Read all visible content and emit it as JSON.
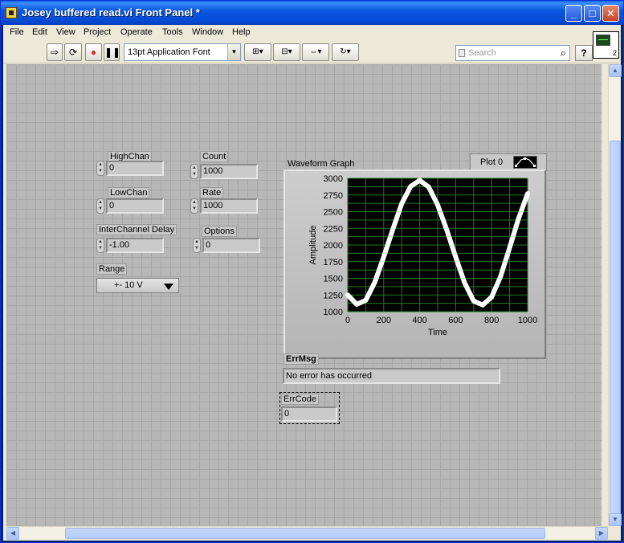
{
  "window": {
    "title": "Josey buffered read.vi Front Panel *"
  },
  "menu": [
    "File",
    "Edit",
    "View",
    "Project",
    "Operate",
    "Tools",
    "Window",
    "Help"
  ],
  "toolbar": {
    "font": "13pt Application Font",
    "search_placeholder": "Search",
    "help_label": "?",
    "icon_number": "2"
  },
  "controls": {
    "highchan": {
      "label": "HighChan",
      "value": "0"
    },
    "lowchan": {
      "label": "LowChan",
      "value": "0"
    },
    "interchannel_delay": {
      "label": "InterChannel Delay",
      "value": "-1.00"
    },
    "range": {
      "label": "Range",
      "value": "+- 10 V"
    },
    "count": {
      "label": "Count",
      "value": "1000"
    },
    "rate": {
      "label": "Rate",
      "value": "1000"
    },
    "options": {
      "label": "Options",
      "value": "0"
    }
  },
  "graph": {
    "title": "Waveform Graph",
    "legend": "Plot 0",
    "colors": {
      "plot_bg": "#000000",
      "grid": "#1f7a1f",
      "trace": "#ffffff"
    }
  },
  "chart_data": {
    "type": "line",
    "title": "Waveform Graph",
    "xlabel": "Time",
    "ylabel": "Amplitude",
    "xlim": [
      0,
      1000
    ],
    "ylim": [
      1000,
      3000
    ],
    "x_ticks": [
      "0",
      "200",
      "400",
      "600",
      "800",
      "1000"
    ],
    "y_ticks": [
      "1000",
      "1250",
      "1500",
      "1750",
      "2000",
      "2250",
      "2500",
      "2750",
      "3000"
    ],
    "grid": true,
    "series": [
      {
        "name": "Plot 0",
        "x": [
          0,
          50,
          100,
          150,
          200,
          250,
          300,
          350,
          400,
          450,
          500,
          550,
          600,
          650,
          700,
          750,
          800,
          850,
          900,
          950,
          1000
        ],
        "y": [
          1250,
          1110,
          1170,
          1440,
          1820,
          2230,
          2620,
          2880,
          2970,
          2870,
          2600,
          2230,
          1820,
          1430,
          1160,
          1100,
          1220,
          1530,
          1960,
          2400,
          2770
        ]
      }
    ]
  },
  "indicators": {
    "errmsg": {
      "label": "ErrMsg",
      "value": "No error has occurred"
    },
    "errcode": {
      "label": "ErrCode",
      "value": "0"
    }
  }
}
